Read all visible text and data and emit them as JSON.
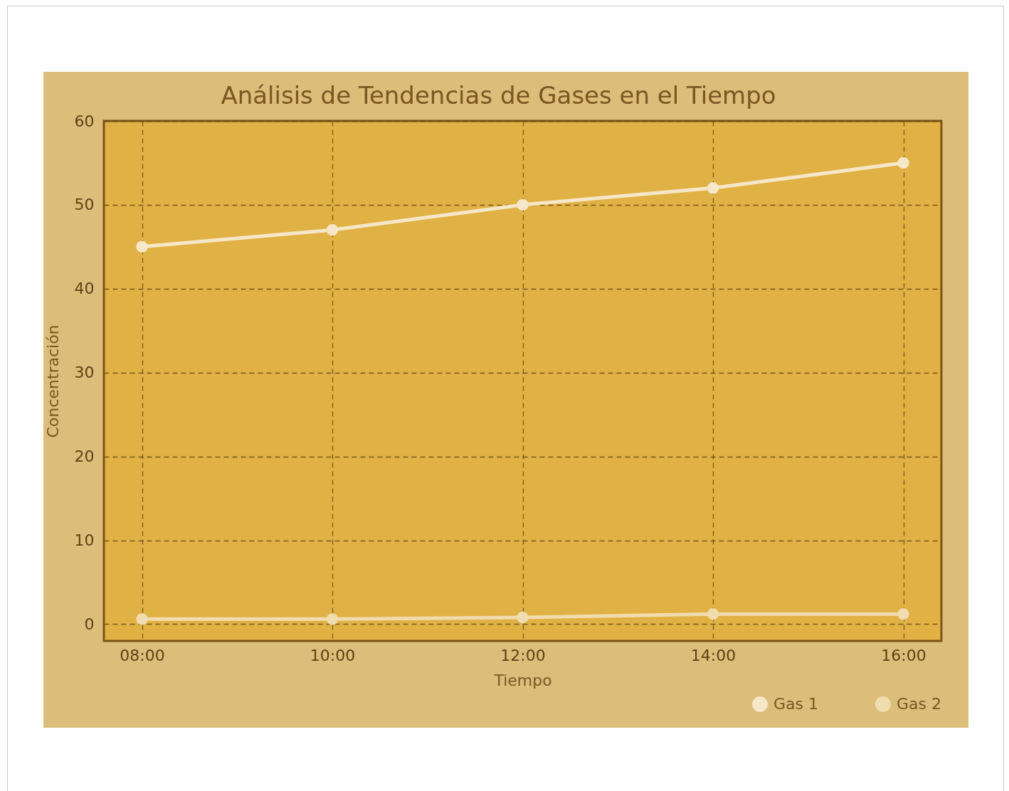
{
  "chart_data": {
    "type": "line",
    "title": "Análisis de Tendencias de Gases en el Tiempo",
    "xlabel": "Tiempo",
    "ylabel": "Concentración",
    "x": [
      8,
      10,
      12,
      14,
      16
    ],
    "series": [
      {
        "name": "Gas 1",
        "color": "#f6e7c9",
        "values": [
          45,
          47,
          50,
          52,
          55
        ]
      },
      {
        "name": "Gas 2",
        "color": "#f0dcae",
        "values": [
          0.6,
          0.6,
          0.8,
          1.2,
          1.2
        ]
      }
    ],
    "xlim": [
      7.6,
      16.4
    ],
    "xticks": [
      {
        "value": 8,
        "label": "08:00"
      },
      {
        "value": 10,
        "label": "10:00"
      },
      {
        "value": 12,
        "label": "12:00"
      },
      {
        "value": 14,
        "label": "14:00"
      },
      {
        "value": 16,
        "label": "16:00"
      }
    ],
    "ylim": [
      -2,
      60
    ],
    "yticks": [
      0,
      10,
      20,
      30,
      40,
      50,
      60
    ],
    "grid": true,
    "legend": "bottom right",
    "marker": "circle",
    "line_style": "solid"
  }
}
